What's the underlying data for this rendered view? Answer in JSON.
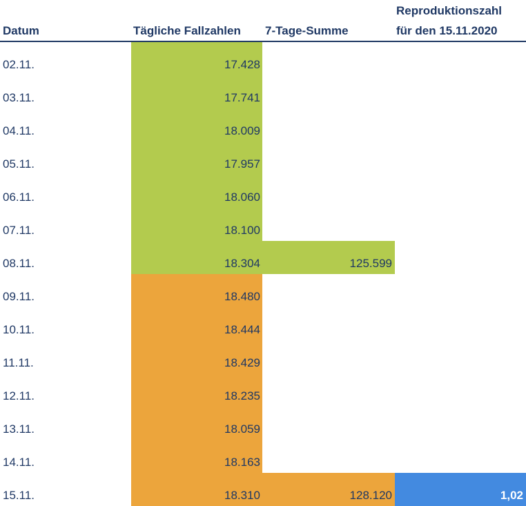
{
  "header": {
    "datum": "Datum",
    "faelle": "Tägliche Fallzahlen",
    "summe": "7-Tage-Summe",
    "r_line1": "Reproduktionszahl",
    "r_line2": "für den 15.11.2020"
  },
  "colors": {
    "text": "#1f3864",
    "green": "#b3cb4e",
    "orange": "#eca53c",
    "blue": "#438ae0"
  },
  "rows": [
    {
      "date": "02.11.",
      "cases": "17.428",
      "sum": "",
      "r": "",
      "group": "green"
    },
    {
      "date": "03.11.",
      "cases": "17.741",
      "sum": "",
      "r": "",
      "group": "green"
    },
    {
      "date": "04.11.",
      "cases": "18.009",
      "sum": "",
      "r": "",
      "group": "green"
    },
    {
      "date": "05.11.",
      "cases": "17.957",
      "sum": "",
      "r": "",
      "group": "green"
    },
    {
      "date": "06.11.",
      "cases": "18.060",
      "sum": "",
      "r": "",
      "group": "green"
    },
    {
      "date": "07.11.",
      "cases": "18.100",
      "sum": "",
      "r": "",
      "group": "green"
    },
    {
      "date": "08.11.",
      "cases": "18.304",
      "sum": "125.599",
      "r": "",
      "group": "green"
    },
    {
      "date": "09.11.",
      "cases": "18.480",
      "sum": "",
      "r": "",
      "group": "orange"
    },
    {
      "date": "10.11.",
      "cases": "18.444",
      "sum": "",
      "r": "",
      "group": "orange"
    },
    {
      "date": "11.11.",
      "cases": "18.429",
      "sum": "",
      "r": "",
      "group": "orange"
    },
    {
      "date": "12.11.",
      "cases": "18.235",
      "sum": "",
      "r": "",
      "group": "orange"
    },
    {
      "date": "13.11.",
      "cases": "18.059",
      "sum": "",
      "r": "",
      "group": "orange"
    },
    {
      "date": "14.11.",
      "cases": "18.163",
      "sum": "",
      "r": "",
      "group": "orange"
    },
    {
      "date": "15.11.",
      "cases": "18.310",
      "sum": "128.120",
      "r": "1,02",
      "group": "orange"
    }
  ]
}
